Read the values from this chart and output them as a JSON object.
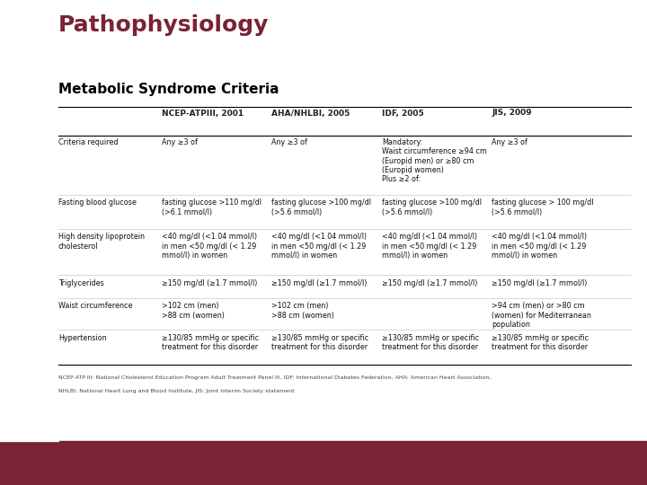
{
  "title": "Pathophysiology",
  "subtitle": "Metabolic Syndrome Criteria",
  "title_color": "#7B2235",
  "subtitle_color": "#000000",
  "bg_color": "#FFFFFF",
  "footer_color": "#7B2235",
  "col_headers": [
    "",
    "NCEP-ATPIII, 2001",
    "AHA/NHLBI, 2005",
    "IDF, 2005",
    "JIS, 2009"
  ],
  "rows": [
    {
      "label": "Criteria required",
      "ncep": "Any ≥3 of",
      "aha": "Any ≥3 of",
      "idf": "Mandatory:\nWaist circumference ≥94 cm\n(Europid men) or ≥80 cm\n(Europid women)\nPlus ≥2 of:",
      "jis": "Any ≥3 of"
    },
    {
      "label": "Fasting blood glucose",
      "ncep": "fasting glucose >110 mg/dl\n(>6.1 mmol/l)",
      "aha": "fasting glucose >100 mg/dl\n(>5.6 mmol/l)",
      "idf": "fasting glucose >100 mg/dl\n(>5.6 mmol/l)",
      "jis": "fasting glucose > 100 mg/dl\n(>5.6 mmol/l)"
    },
    {
      "label": "High density lipoprotein\ncholesterol",
      "ncep": "<40 mg/dl (<1.04 mmol/l)\nin men <50 mg/dl (< 1.29\nmmol/l) in women",
      "aha": "<40 mg/dl (<1.04 mmol/l)\nin men <50 mg/dl (< 1.29\nmmol/l) in women",
      "idf": "<40 mg/dl (<1.04 mmol/l)\nin men <50 mg/dl (< 1.29\nmmol/l) in women",
      "jis": "<40 mg/dl (<1.04 mmol/l)\nin men <50 mg/dl (< 1.29\nmmol/l) in women"
    },
    {
      "label": "Triglycerides",
      "ncep": "≥150 mg/dl (≥1.7 mmol/l)",
      "aha": "≥150 mg/dl (≥1.7 mmol/l)",
      "idf": "≥150 mg/dl (≥1.7 mmol/l)",
      "jis": "≥150 mg/dl (≥1.7 mmol/l)"
    },
    {
      "label": "Waist circumference",
      "ncep": ">102 cm (men)\n>88 cm (women)",
      "aha": ">102 cm (men)\n>88 cm (women)",
      "idf": "",
      "jis": ">94 cm (men) or >80 cm\n(women) for Mediterranean\npopulation"
    },
    {
      "label": "Hypertension",
      "ncep": "≥130/85 mmHg or specific\ntreatment for this disorder",
      "aha": "≥130/85 mmHg or specific\ntreatment for this disorder",
      "idf": "≥130/85 mmHg or specific\ntreatment for this disorder",
      "jis": "≥130/85 mmHg or specific\ntreatment for this disorder"
    }
  ],
  "footnote_line1": "NCEP ATP III: National Cholesterol Education Program Adult Treatment Panel III, IDF: International Diabetes Federation, AHA: American Heart Association,",
  "footnote_line2": "NHLBI: National Heart Lung and Blood Institute, JIS: Joint Interim Society statement"
}
